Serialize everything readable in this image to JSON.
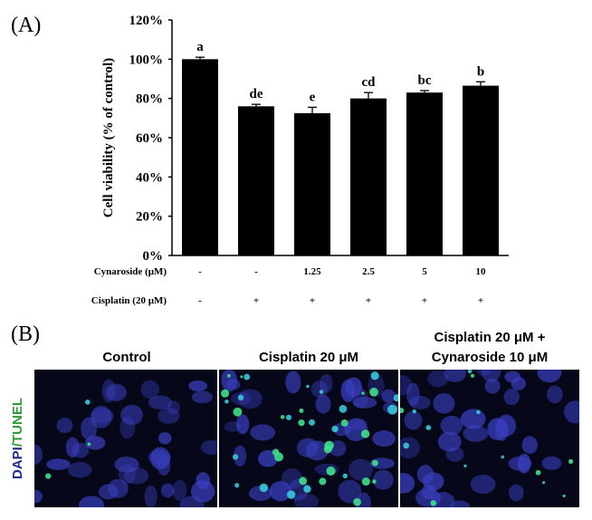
{
  "panel_a_label": "(A)",
  "chart_data": {
    "type": "bar",
    "ylabel": "Cell viability (% of control)",
    "values": [
      100,
      76,
      72.5,
      80,
      83,
      86.5
    ],
    "errors": [
      1,
      1,
      3,
      3,
      1,
      2
    ],
    "annotations": [
      "a",
      "de",
      "e",
      "cd",
      "bc",
      "b"
    ],
    "color": "#000000",
    "ylim": [
      0,
      120
    ],
    "yticks": [
      {
        "value": 0,
        "label": "0%"
      },
      {
        "value": 20,
        "label": "20%"
      },
      {
        "value": 40,
        "label": "40%"
      },
      {
        "value": 60,
        "label": "60%"
      },
      {
        "value": 80,
        "label": "80%"
      },
      {
        "value": 100,
        "label": "100%"
      },
      {
        "value": 120,
        "label": "120%"
      }
    ],
    "treatments": [
      {
        "label": "Cynaroside (μM)",
        "values": [
          "-",
          "-",
          "1.25",
          "2.5",
          "5",
          "10"
        ]
      },
      {
        "label": "Cisplatin (20 μM)",
        "values": [
          "-",
          "+",
          "+",
          "+",
          "+",
          "+"
        ]
      }
    ]
  },
  "panel_b_label": "(B)",
  "images": {
    "titles": [
      [
        "Control"
      ],
      [
        "Cisplatin 20 μM"
      ],
      [
        "Cisplatin 20 μM +",
        "Cynaroside 10 μM"
      ]
    ],
    "stain": [
      "DAPI",
      "/TUNEL"
    ]
  }
}
